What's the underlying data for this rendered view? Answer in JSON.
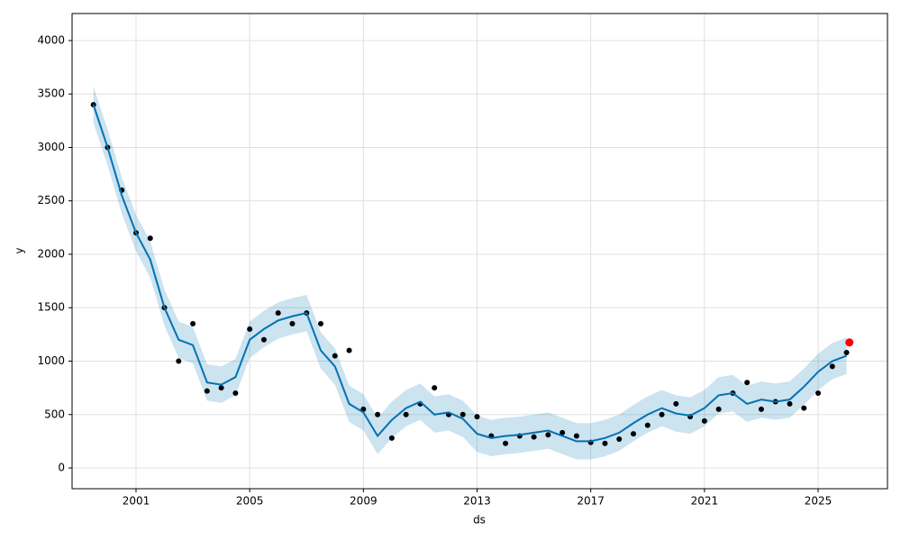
{
  "chart_data": {
    "type": "line",
    "x_label": "ds",
    "y_label": "y",
    "x": [
      1999.5,
      2000.0,
      2000.5,
      2001.0,
      2001.5,
      2002.0,
      2002.5,
      2003.0,
      2003.5,
      2004.0,
      2004.5,
      2005.0,
      2005.5,
      2006.0,
      2006.5,
      2007.0,
      2007.5,
      2008.0,
      2008.5,
      2009.0,
      2009.5,
      2010.0,
      2010.5,
      2011.0,
      2011.5,
      2012.0,
      2012.5,
      2013.0,
      2013.5,
      2014.0,
      2014.5,
      2015.0,
      2015.5,
      2016.0,
      2016.5,
      2017.0,
      2017.5,
      2018.0,
      2018.5,
      2019.0,
      2019.5,
      2020.0,
      2020.5,
      2021.0,
      2021.5,
      2022.0,
      2022.5,
      2023.0,
      2023.5,
      2024.0,
      2024.5,
      2025.0,
      2025.5,
      2026.0
    ],
    "band": {
      "color": "#0072B2",
      "lower": [
        3230,
        2830,
        2380,
        2030,
        1780,
        1330,
        1030,
        980,
        630,
        610,
        680,
        1030,
        1130,
        1210,
        1250,
        1280,
        930,
        780,
        430,
        350,
        130,
        280,
        390,
        450,
        330,
        350,
        290,
        150,
        110,
        130,
        140,
        160,
        180,
        130,
        80,
        80,
        110,
        160,
        250,
        330,
        390,
        340,
        320,
        390,
        510,
        530,
        430,
        470,
        450,
        470,
        590,
        730,
        830,
        880
      ],
      "upper": [
        3570,
        3170,
        2720,
        2370,
        2120,
        1670,
        1370,
        1320,
        970,
        950,
        1020,
        1370,
        1470,
        1550,
        1590,
        1620,
        1270,
        1120,
        770,
        690,
        470,
        620,
        730,
        790,
        670,
        690,
        630,
        490,
        450,
        470,
        480,
        500,
        520,
        470,
        420,
        420,
        450,
        500,
        590,
        670,
        730,
        680,
        660,
        730,
        850,
        870,
        770,
        810,
        790,
        810,
        930,
        1070,
        1170,
        1220
      ]
    },
    "series": [
      {
        "style": "points",
        "color": "#000000",
        "values": [
          3400,
          3000,
          2600,
          2200,
          2150,
          1500,
          1000,
          1350,
          720,
          750,
          700,
          1300,
          1200,
          1450,
          1350,
          1450,
          1350,
          1050,
          1100,
          550,
          500,
          280,
          500,
          600,
          750,
          500,
          500,
          480,
          300,
          230,
          300,
          290,
          310,
          330,
          300,
          240,
          230,
          270,
          320,
          400,
          500,
          600,
          480,
          440,
          550,
          700,
          800,
          550,
          620,
          600,
          560,
          700,
          950,
          1080
        ]
      },
      {
        "style": "line",
        "color": "#0072B2",
        "values": [
          3400,
          3000,
          2550,
          2200,
          1950,
          1500,
          1200,
          1150,
          800,
          780,
          850,
          1200,
          1300,
          1380,
          1420,
          1450,
          1100,
          950,
          600,
          520,
          300,
          450,
          560,
          620,
          500,
          520,
          460,
          320,
          280,
          300,
          310,
          330,
          350,
          300,
          250,
          250,
          280,
          330,
          420,
          500,
          560,
          510,
          490,
          560,
          680,
          700,
          600,
          640,
          620,
          640,
          760,
          900,
          1000,
          1050
        ]
      }
    ],
    "highlight": {
      "x": [
        2026.1
      ],
      "values": [
        1175
      ],
      "color": "#ff0000"
    },
    "xlim": [
      1998.75,
      2027.44
    ],
    "ylim": [
      -194,
      4253
    ],
    "xticks": [
      2001,
      2005,
      2009,
      2013,
      2017,
      2021,
      2025
    ],
    "yticks": [
      0,
      500,
      1000,
      1500,
      2000,
      2500,
      3000,
      3500,
      4000
    ],
    "grid": true
  }
}
